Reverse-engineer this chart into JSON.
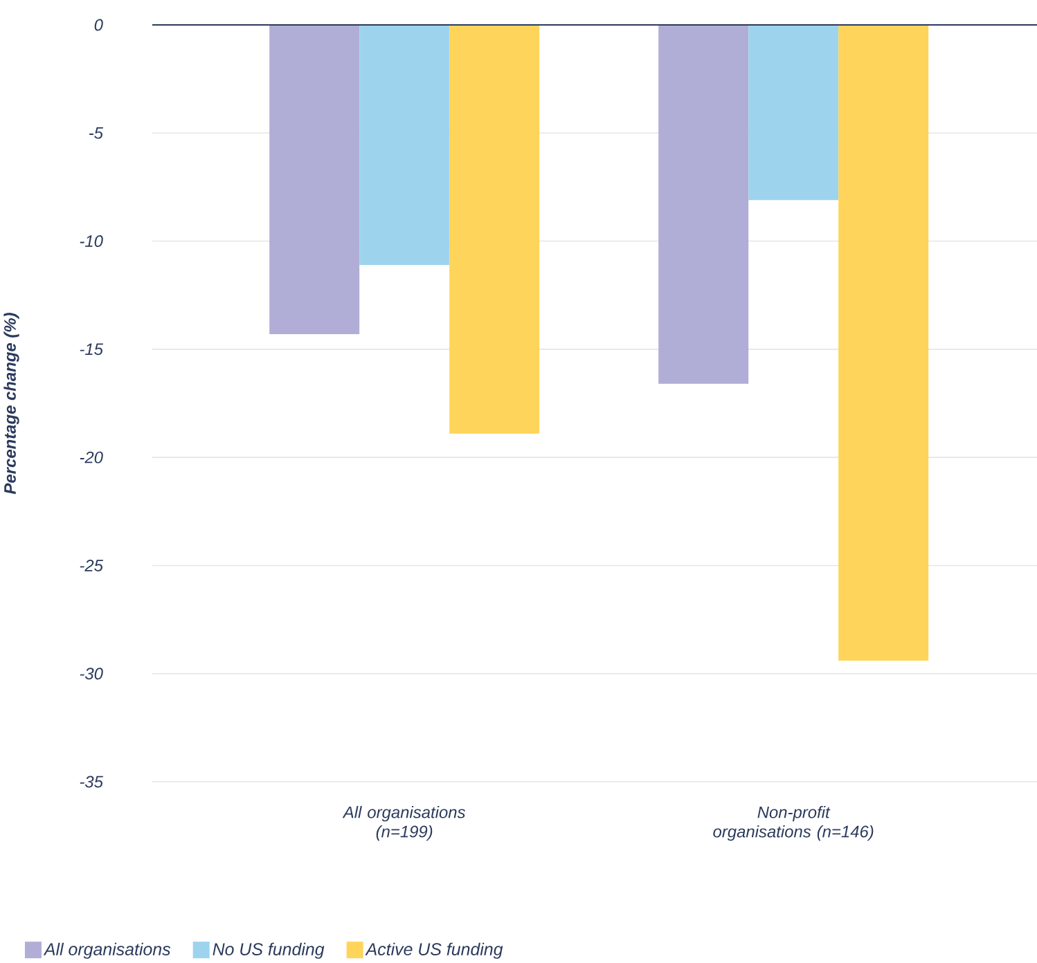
{
  "chart_data": {
    "type": "bar",
    "ylabel": "Percentage change (%)",
    "categories": [
      "All organisations (n=199)",
      "Non-profit organisations (n=146)"
    ],
    "series": [
      {
        "name": "All organisations",
        "color": "#b0aed6",
        "values": [
          -14.3,
          -16.6
        ]
      },
      {
        "name": "No US funding",
        "color": "#9ed3ee",
        "values": [
          -11.1,
          -8.1
        ]
      },
      {
        "name": "Active US funding",
        "color": "#fed45a",
        "values": [
          -18.9,
          -29.4
        ]
      }
    ],
    "ylim": [
      -35,
      0
    ],
    "yticks": [
      -35,
      -30,
      -25,
      -20,
      -15,
      -10,
      -5,
      0
    ],
    "grid": "y",
    "legend": "bottom left"
  }
}
